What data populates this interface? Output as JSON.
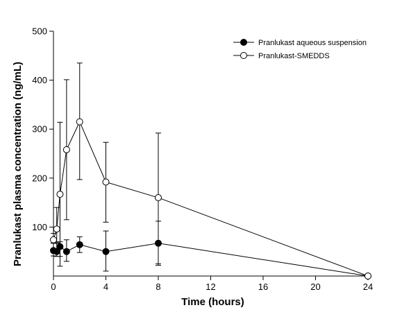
{
  "chart_data": {
    "type": "line",
    "xlabel": "Time (hours)",
    "ylabel": "Pranlukast plasma concentration (ng/mL)",
    "xlim": [
      0,
      24
    ],
    "ylim": [
      0,
      500
    ],
    "x_ticks": [
      0,
      4,
      8,
      12,
      16,
      20,
      24
    ],
    "y_ticks": [
      100,
      200,
      300,
      400,
      500
    ],
    "grid": false,
    "legend_position": "top-right",
    "series": [
      {
        "name": "Pranlukast aqueous suspension",
        "marker": "filled-circle",
        "color": "#000000",
        "x": [
          0,
          0.25,
          0.5,
          1,
          2,
          4,
          8,
          24
        ],
        "y": [
          52,
          50,
          60,
          50,
          64,
          50,
          67,
          0
        ],
        "err_low": [
          41,
          40,
          40,
          30,
          48,
          10,
          22,
          0
        ],
        "err_high": [
          67,
          67,
          70,
          74,
          80,
          92,
          112,
          0
        ]
      },
      {
        "name": "Pranlukast-SMEDDS",
        "marker": "open-circle",
        "color": "#000000",
        "x": [
          0,
          0.25,
          0.5,
          1,
          2,
          4,
          8,
          24
        ],
        "y": [
          74,
          96,
          167,
          258,
          315,
          192,
          160,
          0
        ],
        "err_low": [
          67,
          68,
          20,
          115,
          197,
          110,
          25,
          0
        ],
        "err_high": [
          87,
          140,
          314,
          401,
          435,
          273,
          292,
          0
        ]
      }
    ]
  }
}
